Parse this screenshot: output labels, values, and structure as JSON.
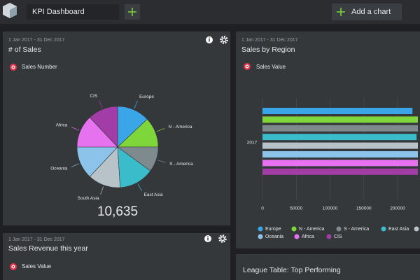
{
  "header": {
    "title": "KPI Dashboard",
    "add_chart": "Add a chart"
  },
  "panels": [
    {
      "date": "1 Jan 2017 - 31 Dec 2017",
      "title": "# of Sales",
      "measure": "Sales Number",
      "total": "10,635"
    },
    {
      "date": "1 Jan 2017 - 31 Dec 2017",
      "title": "Sales by Region",
      "measure": "Sales Value"
    },
    {
      "date": "1 Jan 2017 - 31 Dec 2017",
      "title": "Sales Revenue this year",
      "measure": "Sales Value"
    },
    {
      "title": "League Table: Top Performing"
    }
  ],
  "chart_data": [
    {
      "type": "pie",
      "categories": [
        "Europe",
        "N - America",
        "S - America",
        "East Asia",
        "South Asia",
        "Oceania",
        "Africa",
        "CIS"
      ],
      "values": [
        13,
        12,
        10,
        14,
        13,
        13,
        13,
        12
      ],
      "colors": [
        "#3aa6e8",
        "#7ed63a",
        "#7f8a8f",
        "#3bbccb",
        "#b7c3c8",
        "#8cc3ea",
        "#e772f0",
        "#a23ca6"
      ]
    },
    {
      "type": "bar",
      "orientation": "horizontal",
      "categories": [
        "2017"
      ],
      "series": [
        {
          "name": "Europe",
          "color": "#3aa6e8",
          "values": [
            222000
          ]
        },
        {
          "name": "N - America",
          "color": "#7ed63a",
          "values": [
            230000
          ]
        },
        {
          "name": "S - America",
          "color": "#7f8a8f",
          "values": [
            230000
          ]
        },
        {
          "name": "East Asia",
          "color": "#3bbccb",
          "values": [
            228000
          ]
        },
        {
          "name": "South Asia",
          "color": "#b7c3c8",
          "values": [
            230000
          ]
        },
        {
          "name": "Oceania",
          "color": "#8cc3ea",
          "values": [
            230000
          ]
        },
        {
          "name": "Africa",
          "color": "#e772f0",
          "values": [
            230000
          ]
        },
        {
          "name": "CIS",
          "color": "#a23ca6",
          "values": [
            230000
          ]
        }
      ],
      "xlim": [
        0,
        230000
      ],
      "xticks": [
        0,
        50000,
        100000,
        150000,
        200000
      ],
      "grid": true
    }
  ]
}
